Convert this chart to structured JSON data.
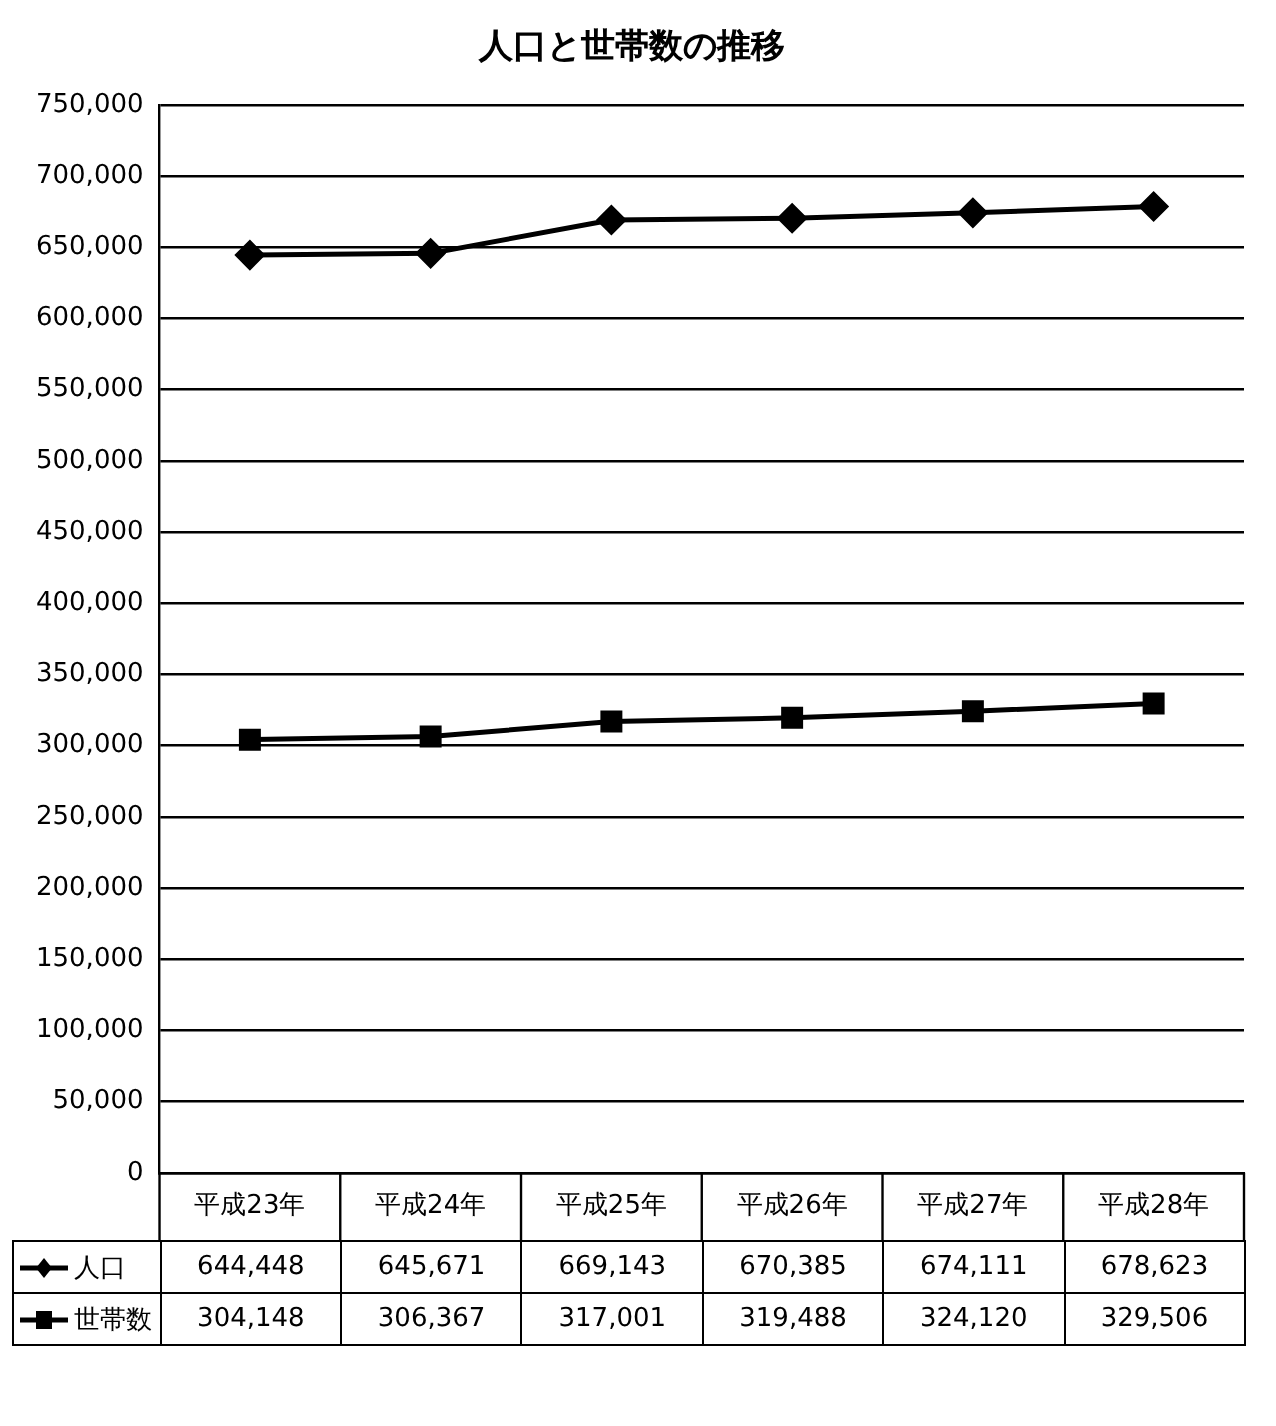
{
  "chart_data": {
    "type": "line",
    "title": "人口と世帯数の推移",
    "categories": [
      "平成23年",
      "平成24年",
      "平成25年",
      "平成26年",
      "平成27年",
      "平成28年"
    ],
    "series": [
      {
        "name": "人口",
        "color": "#000000",
        "marker": "diamond",
        "values": [
          644448,
          645671,
          669143,
          670385,
          674111,
          678623
        ],
        "value_labels": [
          "644,448",
          "645,671",
          "669,143",
          "670,385",
          "674,111",
          "678,623"
        ]
      },
      {
        "name": "世帯数",
        "color": "#000000",
        "marker": "square",
        "values": [
          304148,
          306367,
          317001,
          319488,
          324120,
          329506
        ],
        "value_labels": [
          "304,148",
          "306,367",
          "317,001",
          "319,488",
          "324,120",
          "329,506"
        ]
      }
    ],
    "ylim": [
      0,
      750000
    ],
    "yticks": [
      {
        "value": 0,
        "label": "0"
      },
      {
        "value": 50000,
        "label": "50,000"
      },
      {
        "value": 100000,
        "label": "100,000"
      },
      {
        "value": 150000,
        "label": "150,000"
      },
      {
        "value": 200000,
        "label": "200,000"
      },
      {
        "value": 250000,
        "label": "250,000"
      },
      {
        "value": 300000,
        "label": "300,000"
      },
      {
        "value": 350000,
        "label": "350,000"
      },
      {
        "value": 400000,
        "label": "400,000"
      },
      {
        "value": 450000,
        "label": "450,000"
      },
      {
        "value": 500000,
        "label": "500,000"
      },
      {
        "value": 550000,
        "label": "550,000"
      },
      {
        "value": 600000,
        "label": "600,000"
      },
      {
        "value": 650000,
        "label": "650,000"
      },
      {
        "value": 700000,
        "label": "700,000"
      },
      {
        "value": 750000,
        "label": "750,000"
      }
    ],
    "grid": "y",
    "legend": "bottom"
  }
}
